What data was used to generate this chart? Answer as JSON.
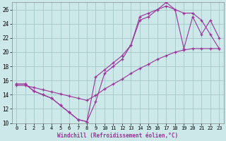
{
  "xlabel": "Windchill (Refroidissement éolien,°C)",
  "bg_color": "#cce8e8",
  "grid_color": "#aacccc",
  "line_color": "#993399",
  "xlim": [
    -0.5,
    23.5
  ],
  "ylim": [
    10,
    27
  ],
  "xticks": [
    0,
    1,
    2,
    3,
    4,
    5,
    6,
    7,
    8,
    9,
    10,
    11,
    12,
    13,
    14,
    15,
    16,
    17,
    18,
    19,
    20,
    21,
    22,
    23
  ],
  "yticks": [
    10,
    12,
    14,
    16,
    18,
    20,
    22,
    24,
    26
  ],
  "line1_x": [
    0,
    1,
    2,
    3,
    4,
    5,
    6,
    7,
    8,
    9,
    10,
    11,
    12,
    13,
    14,
    15,
    16,
    17,
    18,
    19,
    20,
    21,
    22,
    23
  ],
  "line1_y": [
    15.5,
    15.5,
    14.5,
    14.0,
    13.5,
    12.5,
    11.5,
    10.5,
    10.2,
    16.5,
    17.5,
    18.5,
    19.5,
    21.0,
    24.5,
    25.0,
    26.0,
    27.0,
    26.0,
    25.5,
    25.5,
    24.5,
    22.5,
    20.5
  ],
  "line2_x": [
    0,
    1,
    2,
    3,
    4,
    5,
    6,
    7,
    8,
    9,
    10,
    11,
    12,
    13,
    14,
    15,
    16,
    17,
    18,
    19,
    20,
    21,
    22,
    23
  ],
  "line2_y": [
    15.5,
    15.5,
    14.5,
    14.0,
    13.5,
    12.5,
    11.5,
    10.5,
    10.2,
    13.0,
    17.0,
    18.0,
    19.0,
    21.0,
    25.0,
    25.5,
    26.0,
    26.5,
    26.0,
    20.5,
    25.0,
    22.5,
    24.5,
    22.0
  ],
  "line3_x": [
    0,
    1,
    2,
    3,
    4,
    5,
    6,
    7,
    8,
    9,
    10,
    11,
    12,
    13,
    14,
    15,
    16,
    17,
    18,
    19,
    20,
    21,
    22,
    23
  ],
  "line3_y": [
    15.3,
    15.3,
    15.0,
    14.7,
    14.4,
    14.1,
    13.8,
    13.5,
    13.2,
    13.9,
    14.8,
    15.5,
    16.2,
    17.0,
    17.7,
    18.3,
    19.0,
    19.5,
    20.0,
    20.3,
    20.5,
    20.5,
    20.5,
    20.5
  ]
}
